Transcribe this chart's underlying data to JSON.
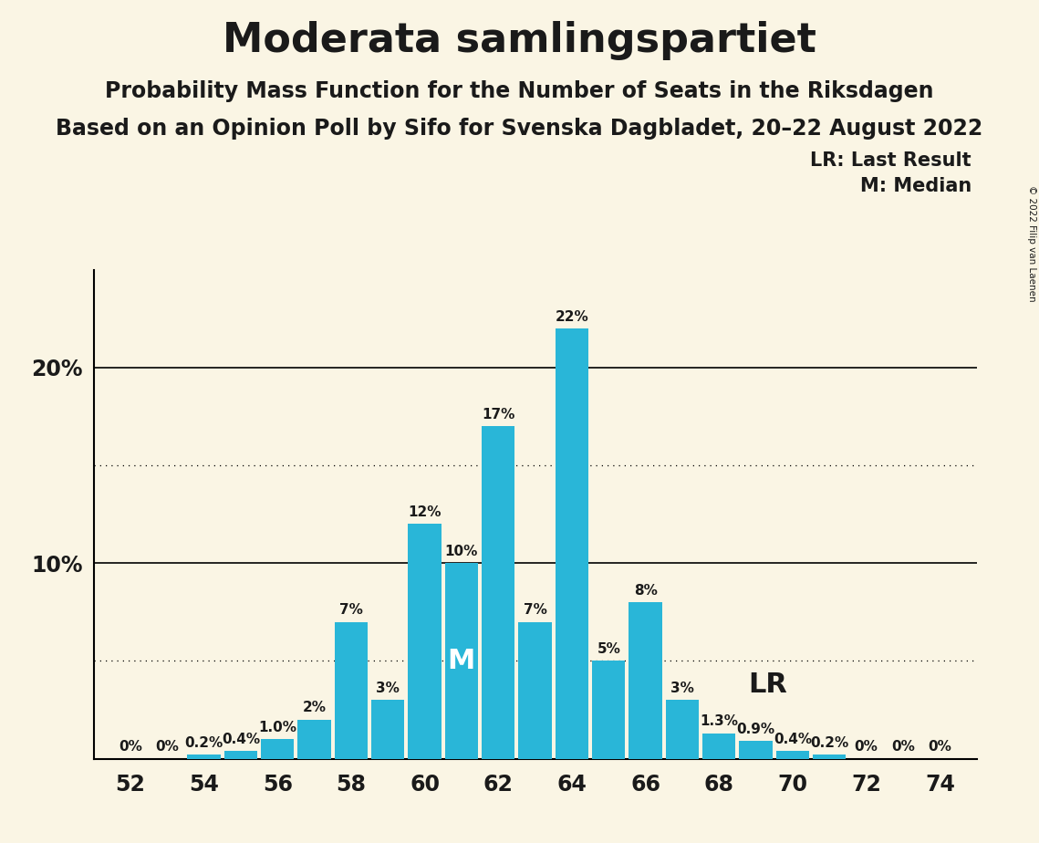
{
  "title": "Moderata samlingspartiet",
  "subtitle1": "Probability Mass Function for the Number of Seats in the Riksdagen",
  "subtitle2": "Based on an Opinion Poll by Sifo for Svenska Dagbladet, 20–22 August 2022",
  "copyright": "© 2022 Filip van Laenen",
  "seats": [
    52,
    53,
    54,
    55,
    56,
    57,
    58,
    59,
    60,
    61,
    62,
    63,
    64,
    65,
    66,
    67,
    68,
    69,
    70,
    71,
    72,
    73,
    74
  ],
  "probabilities": [
    0.0,
    0.0,
    0.2,
    0.4,
    1.0,
    2.0,
    7.0,
    3.0,
    12.0,
    10.0,
    17.0,
    7.0,
    22.0,
    5.0,
    8.0,
    3.0,
    1.3,
    0.9,
    0.4,
    0.2,
    0.0,
    0.0,
    0.0
  ],
  "bar_color": "#29b6d8",
  "background_color": "#faf5e4",
  "median_seat": 62,
  "lr_seat": 70,
  "median_label": "M",
  "lr_label": "LR",
  "legend_lr": "LR: Last Result",
  "legend_m": "M: Median",
  "solid_yticks": [
    10,
    20
  ],
  "dotted_yticks": [
    5,
    15
  ],
  "ylim": [
    0,
    25
  ],
  "xlim": [
    51,
    75
  ],
  "bar_labels": {
    "52": "0%",
    "53": "0%",
    "54": "0.2%",
    "55": "0.4%",
    "56": "1.0%",
    "57": "2%",
    "58": "7%",
    "59": "3%",
    "60": "12%",
    "61": "10%",
    "62": "17%",
    "63": "7%",
    "64": "22%",
    "65": "5%",
    "66": "8%",
    "67": "3%",
    "68": "1.3%",
    "69": "0.9%",
    "70": "0.4%",
    "71": "0.2%",
    "72": "0%",
    "73": "0%",
    "74": "0%"
  },
  "title_fontsize": 32,
  "subtitle1_fontsize": 17,
  "subtitle2_fontsize": 17,
  "bar_label_fontsize": 11,
  "axis_label_fontsize": 17,
  "legend_fontsize": 15,
  "median_label_fontsize": 22,
  "lr_label_fontsize": 22,
  "median_label_color": "white",
  "text_color": "#1a1a1a"
}
